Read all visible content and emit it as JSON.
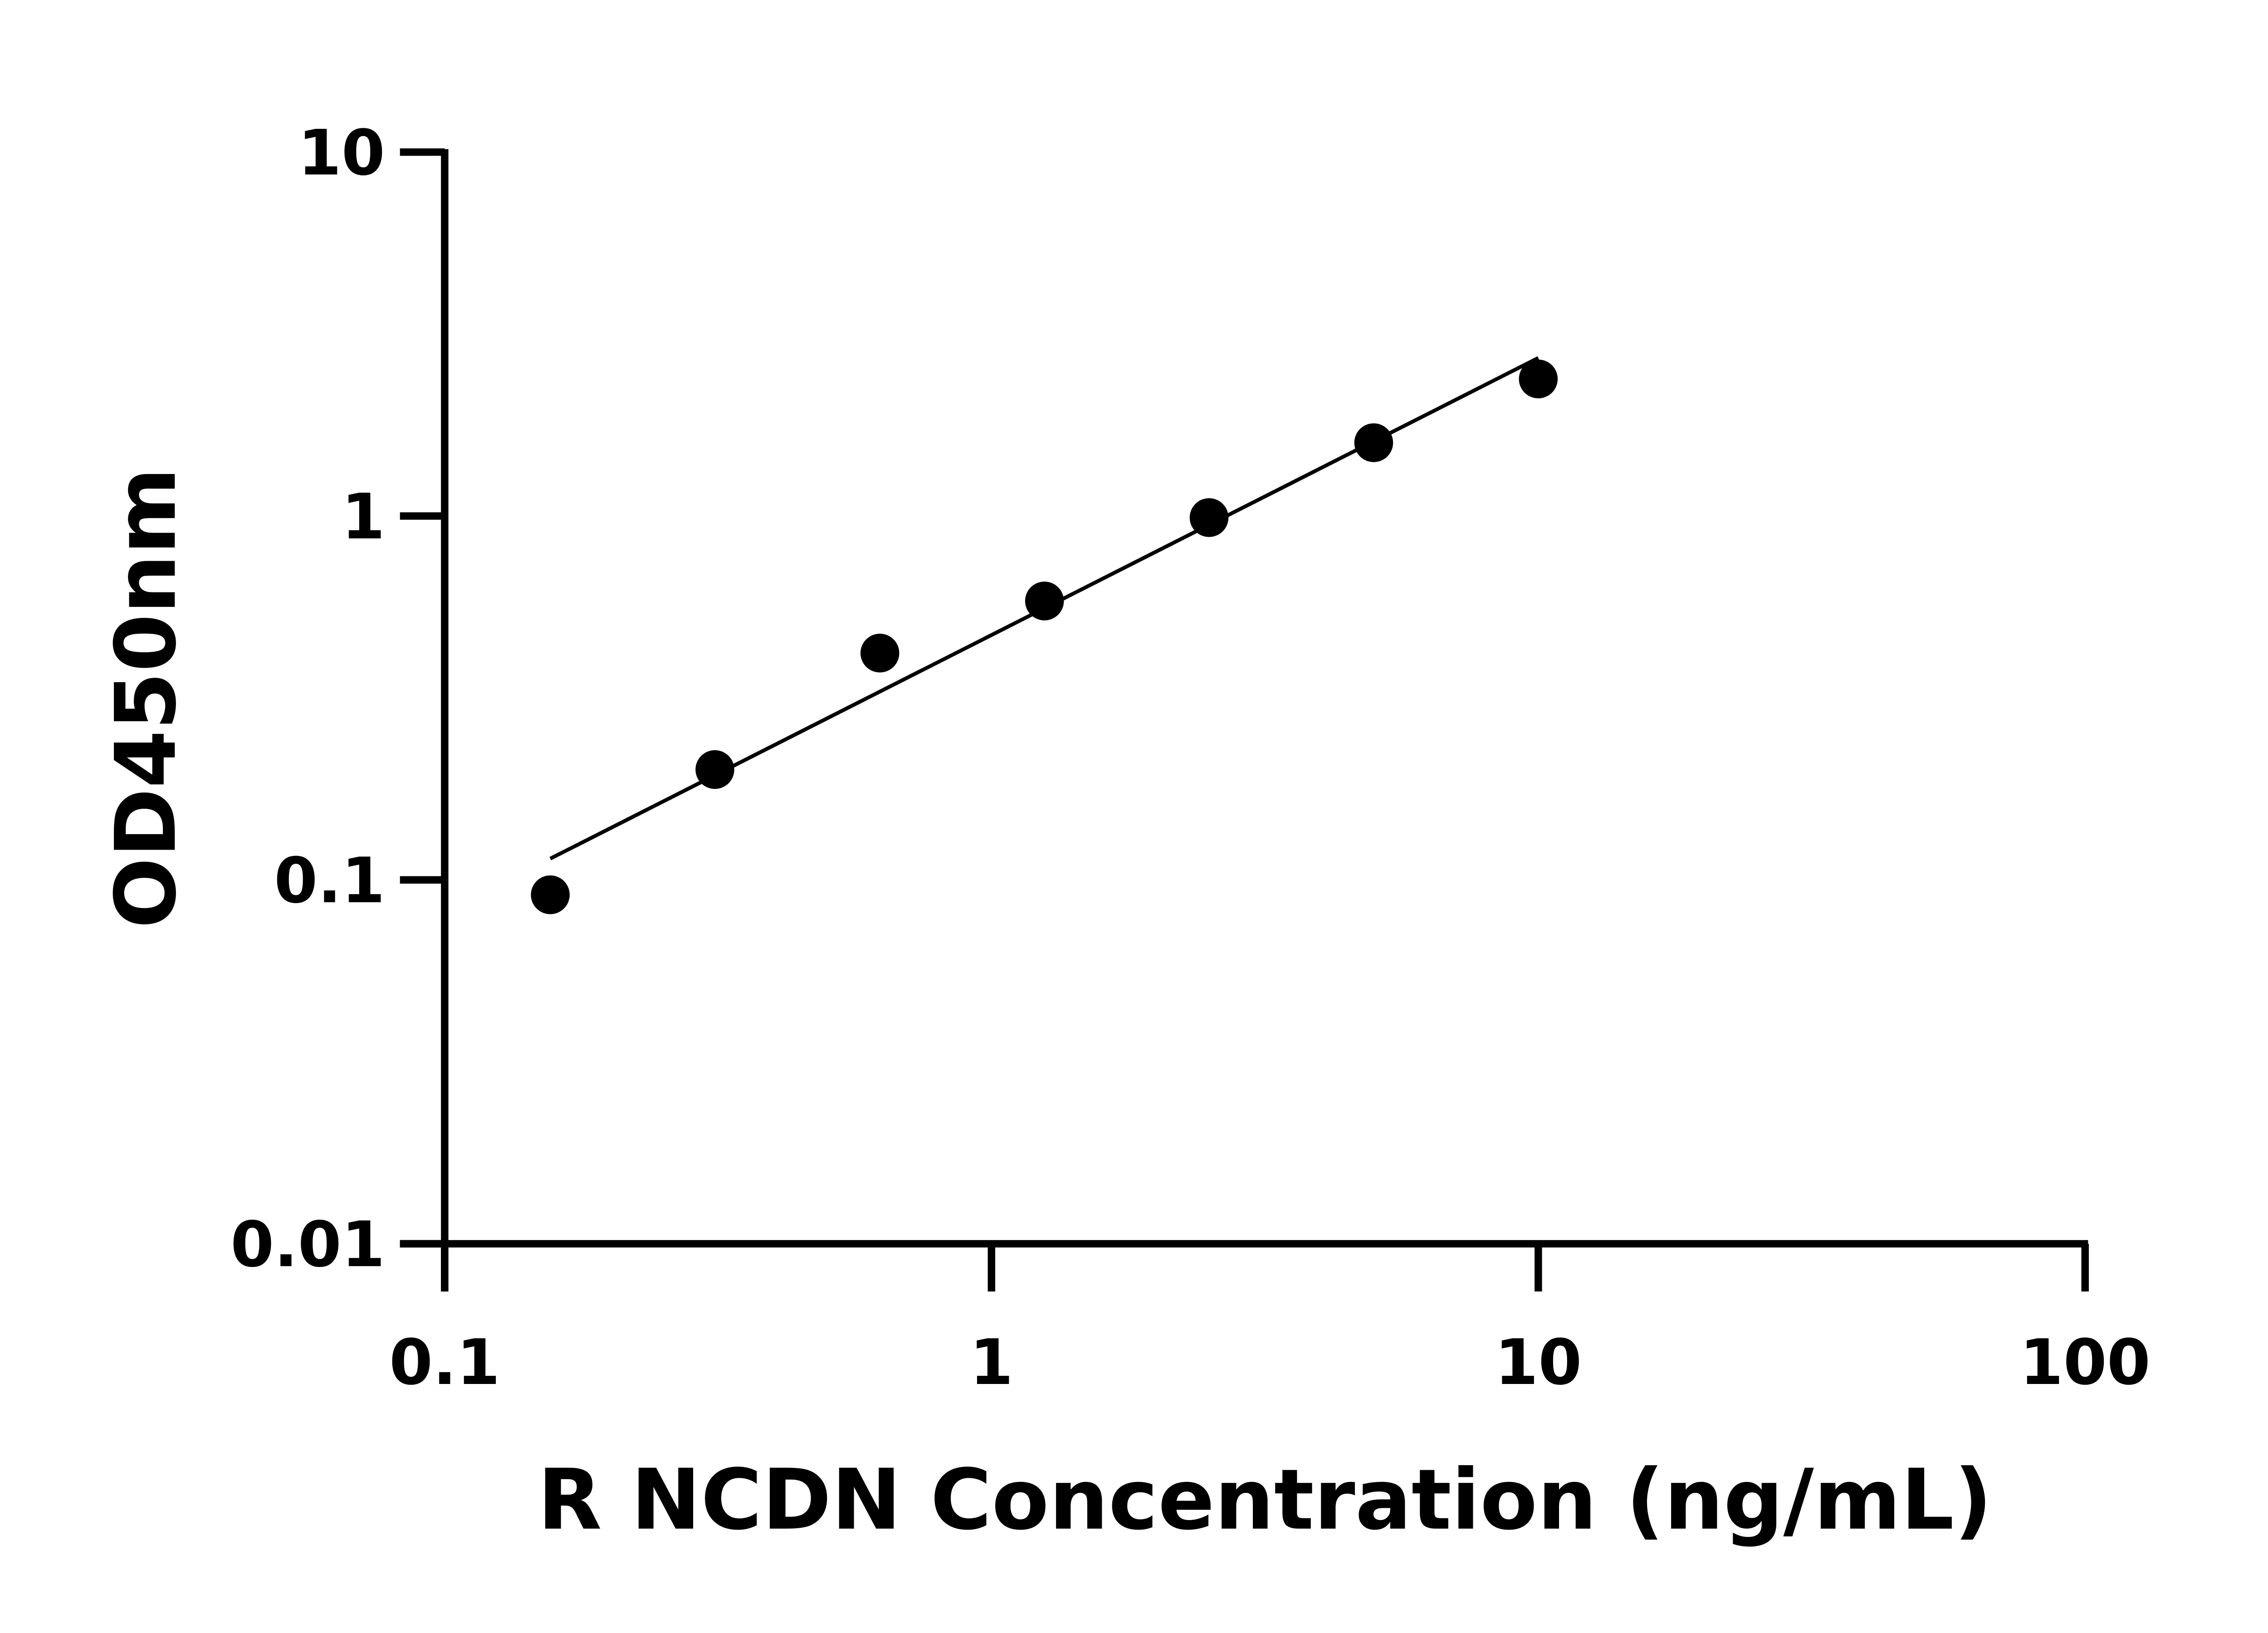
{
  "chart_data": {
    "type": "scatter",
    "title": "",
    "xlabel": "R NCDN Concentration (ng/mL)",
    "ylabel": "OD450nm",
    "x_scale": "log",
    "y_scale": "log",
    "xlim": [
      0.1,
      100
    ],
    "ylim": [
      0.01,
      10
    ],
    "x_ticks": [
      "0.1",
      "1",
      "10",
      "100"
    ],
    "y_ticks": [
      "0.01",
      "0.1",
      "1",
      "10"
    ],
    "grid": false,
    "legend": "none",
    "series": [
      {
        "x": [
          0.156,
          0.312,
          0.625,
          1.25,
          2.5,
          5,
          10
        ],
        "y": [
          0.091,
          0.201,
          0.42,
          0.584,
          0.99,
          1.59,
          2.38
        ]
      }
    ],
    "fit_line": true,
    "colors": {
      "points": "#000000",
      "line": "#000000"
    }
  }
}
